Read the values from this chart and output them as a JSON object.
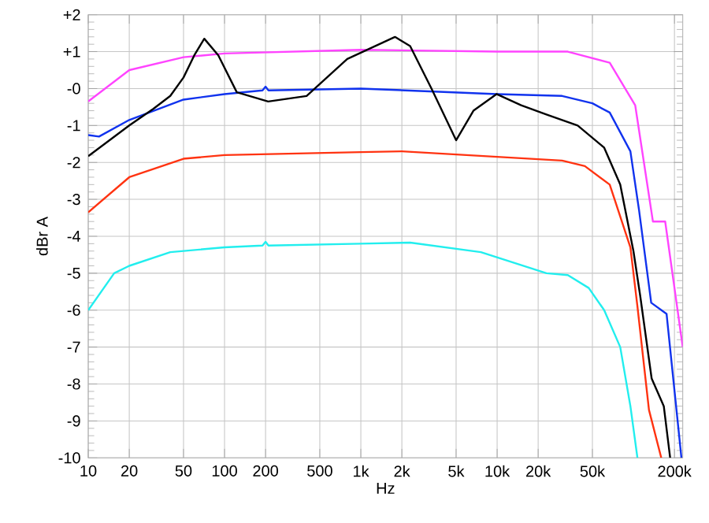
{
  "chart_data": {
    "type": "line",
    "xlabel": "Hz",
    "ylabel": "dBr A",
    "log": "x",
    "grid": true,
    "marker": "none",
    "line_style": "solid",
    "xlim": [
      10,
      230000
    ],
    "ylim": [
      -10,
      2
    ],
    "xticks": [
      10,
      20,
      50,
      100,
      200,
      500,
      {
        "value": 1000,
        "label": "1k"
      },
      {
        "value": 2000,
        "label": "2k"
      },
      {
        "value": 5000,
        "label": "5k"
      },
      {
        "value": 10000,
        "label": "10k"
      },
      {
        "value": 20000,
        "label": "20k"
      },
      {
        "value": 50000,
        "label": "50k"
      },
      {
        "value": 200000,
        "label": "200k"
      }
    ],
    "yticks": [
      {
        "value": 2,
        "label": "+2"
      },
      {
        "value": 1,
        "label": "+1"
      },
      {
        "value": 0,
        "label": "-0"
      },
      -1,
      -2,
      -3,
      -4,
      -5,
      -6,
      -7,
      -8,
      -9,
      -10
    ],
    "series": [
      {
        "color": "#ff44ff",
        "x": [
          10,
          20,
          50,
          100,
          1000,
          10000,
          33000,
          67000,
          103000,
          139000,
          171000,
          230000
        ],
        "values": [
          -0.35,
          0.5,
          0.85,
          0.95,
          1.05,
          1.0,
          1.0,
          0.7,
          -0.45,
          -3.6,
          -3.6,
          -7.0
        ]
      },
      {
        "color": "#1133ee",
        "x": [
          10,
          12,
          20,
          50,
          100,
          190,
          200,
          210,
          1000,
          10000,
          30000,
          50000,
          67000,
          95000,
          110000,
          135000,
          175000,
          225000
        ],
        "values": [
          -1.26,
          -1.3,
          -0.85,
          -0.3,
          -0.15,
          -0.05,
          0.05,
          -0.05,
          0.0,
          -0.15,
          -0.2,
          -0.4,
          -0.65,
          -1.7,
          -3.3,
          -5.8,
          -6.1,
          -10
        ]
      },
      {
        "color": "#ff3311",
        "x": [
          10,
          20,
          50,
          100,
          1000,
          2000,
          10000,
          30000,
          44000,
          67000,
          95000,
          107000,
          130000,
          160000
        ],
        "values": [
          -3.35,
          -2.4,
          -1.9,
          -1.8,
          -1.72,
          -1.7,
          -1.85,
          -1.95,
          -2.1,
          -2.6,
          -4.3,
          -5.9,
          -8.7,
          -10
        ]
      },
      {
        "color": "#000000",
        "x": [
          10,
          20,
          30,
          40,
          50,
          60,
          71,
          90,
          123,
          209,
          400,
          795,
          1780,
          2300,
          3300,
          5000,
          6700,
          9900,
          15000,
          23000,
          39000,
          61000,
          80000,
          100000,
          112000,
          136000,
          167000,
          186000
        ],
        "values": [
          -1.83,
          -1.0,
          -0.55,
          -0.2,
          0.3,
          0.9,
          1.35,
          0.9,
          -0.1,
          -0.35,
          -0.2,
          0.8,
          1.4,
          1.15,
          0.0,
          -1.4,
          -0.6,
          -0.15,
          -0.45,
          -0.7,
          -1.0,
          -1.6,
          -2.6,
          -4.4,
          -5.6,
          -7.85,
          -8.6,
          -10
        ]
      },
      {
        "color": "#22eeee",
        "x": [
          10,
          15.5,
          20,
          40,
          100,
          190,
          200,
          210,
          1000,
          2300,
          7600,
          23000,
          33000,
          47000,
          61000,
          80000,
          95000,
          107000
        ],
        "values": [
          -6.0,
          -5.0,
          -4.8,
          -4.43,
          -4.3,
          -4.25,
          -4.15,
          -4.25,
          -4.2,
          -4.17,
          -4.43,
          -5.0,
          -5.05,
          -5.4,
          -6.0,
          -7.0,
          -8.6,
          -10
        ]
      }
    ]
  }
}
